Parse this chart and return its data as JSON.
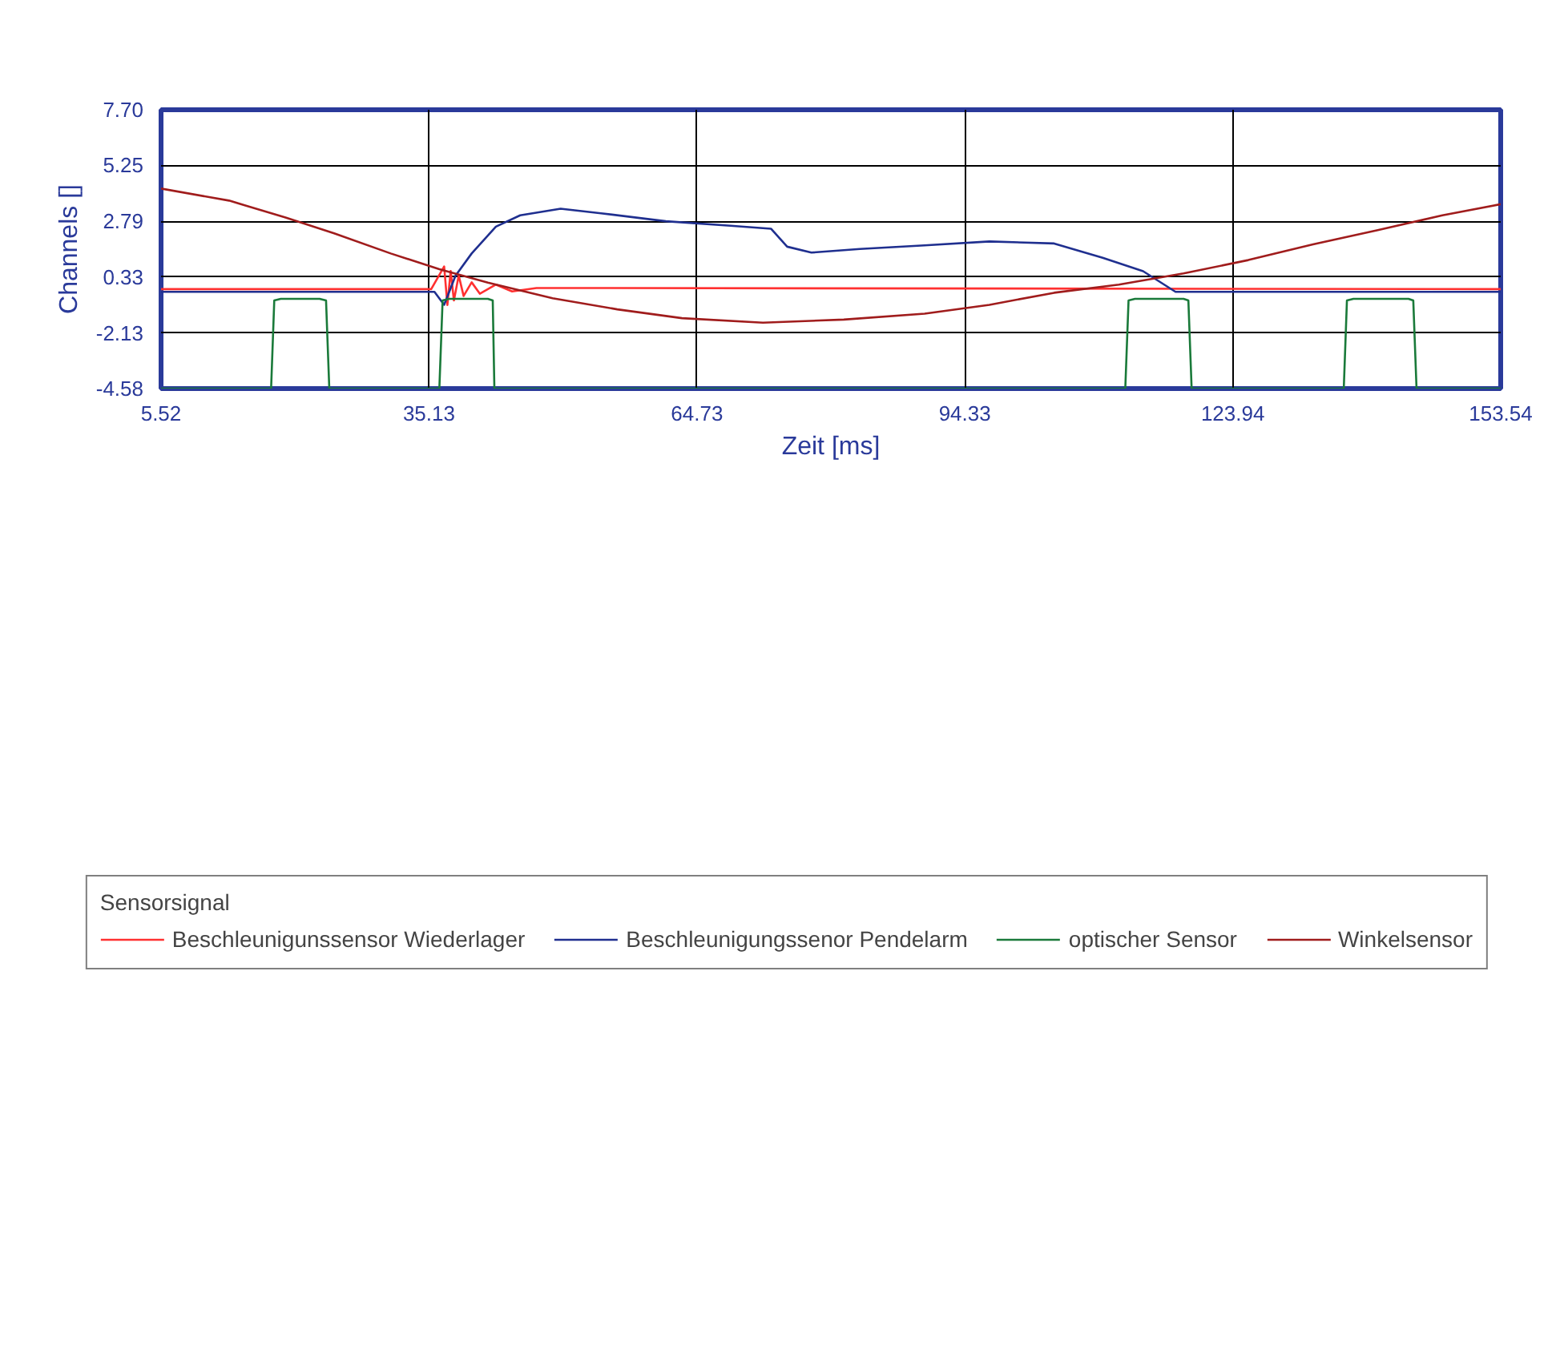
{
  "chart_data": {
    "type": "line",
    "xlabel": "Zeit [ms]",
    "ylabel": "Channels []",
    "legend_title": "Sensorsignal",
    "legend": "bottom",
    "grid": true,
    "xlim": [
      5.52,
      153.54
    ],
    "xticks": [
      5.52,
      35.13,
      64.73,
      94.33,
      123.94,
      153.54
    ],
    "ylim": [
      -4.58,
      7.7
    ],
    "yticks": [
      -4.58,
      -2.13,
      0.33,
      2.79,
      5.25,
      {
        "value": 7.7,
        "label": "7.70"
      }
    ],
    "series": [
      {
        "name": "Beschleunigunssensor Wiederlager",
        "color": "#ff3030",
        "x": [
          5.52,
          35.37,
          36.8,
          37.16,
          37.52,
          37.88,
          38.41,
          38.95,
          39.84,
          40.74,
          42.52,
          44.31,
          47.0,
          153.54
        ],
        "values": [
          -0.2,
          -0.2,
          0.8,
          -0.9,
          0.6,
          -0.7,
          0.4,
          -0.5,
          0.1,
          -0.4,
          0.0,
          -0.3,
          -0.15,
          -0.2
        ]
      },
      {
        "name": "Beschleunigungssenor Pendelarm",
        "color": "#1f2f8f",
        "x": [
          5.52,
          35.73,
          36.8,
          38.05,
          39.84,
          42.52,
          45.2,
          49.67,
          54.14,
          61.29,
          68.44,
          72.91,
          74.7,
          77.38,
          82.74,
          89.89,
          97.05,
          104.2,
          109.56,
          114.03,
          117.61,
          153.54
        ],
        "values": [
          -0.32,
          -0.32,
          -0.89,
          0.39,
          1.37,
          2.55,
          3.05,
          3.34,
          3.14,
          2.79,
          2.59,
          2.46,
          1.67,
          1.41,
          1.57,
          1.73,
          1.9,
          1.81,
          1.18,
          0.59,
          -0.32,
          -0.32
        ]
      },
      {
        "name": "optischer Sensor",
        "color": "#1a7a3a",
        "x": [
          5.52,
          17.68,
          18.03,
          18.75,
          23.04,
          23.75,
          24.11,
          36.27,
          36.63,
          37.34,
          41.63,
          42.17,
          42.35,
          112.06,
          112.42,
          113.13,
          118.5,
          119.03,
          119.39,
          136.2,
          136.55,
          137.27,
          143.35,
          143.88,
          144.24,
          153.54
        ],
        "values": [
          -4.58,
          -4.58,
          -0.7,
          -0.63,
          -0.63,
          -0.7,
          -4.58,
          -4.58,
          -0.7,
          -0.63,
          -0.63,
          -0.7,
          -4.58,
          -4.58,
          -0.7,
          -0.63,
          -0.63,
          -0.7,
          -4.58,
          -4.58,
          -0.7,
          -0.63,
          -0.63,
          -0.7,
          -4.58,
          -4.58
        ]
      },
      {
        "name": "Winkelsensor",
        "color": "#a01c1c",
        "x": [
          5.52,
          13.03,
          19.28,
          24.65,
          30.9,
          36.27,
          41.63,
          48.78,
          55.93,
          63.08,
          72.02,
          80.96,
          89.89,
          97.05,
          104.2,
          111.35,
          118.5,
          125.65,
          132.8,
          139.95,
          147.1,
          153.54
        ],
        "values": [
          4.23,
          3.7,
          2.95,
          2.26,
          1.37,
          0.68,
          0.09,
          -0.6,
          -1.09,
          -1.48,
          -1.68,
          -1.54,
          -1.28,
          -0.89,
          -0.36,
          0.0,
          0.49,
          1.08,
          1.77,
          2.4,
          3.05,
          3.54
        ]
      }
    ]
  }
}
